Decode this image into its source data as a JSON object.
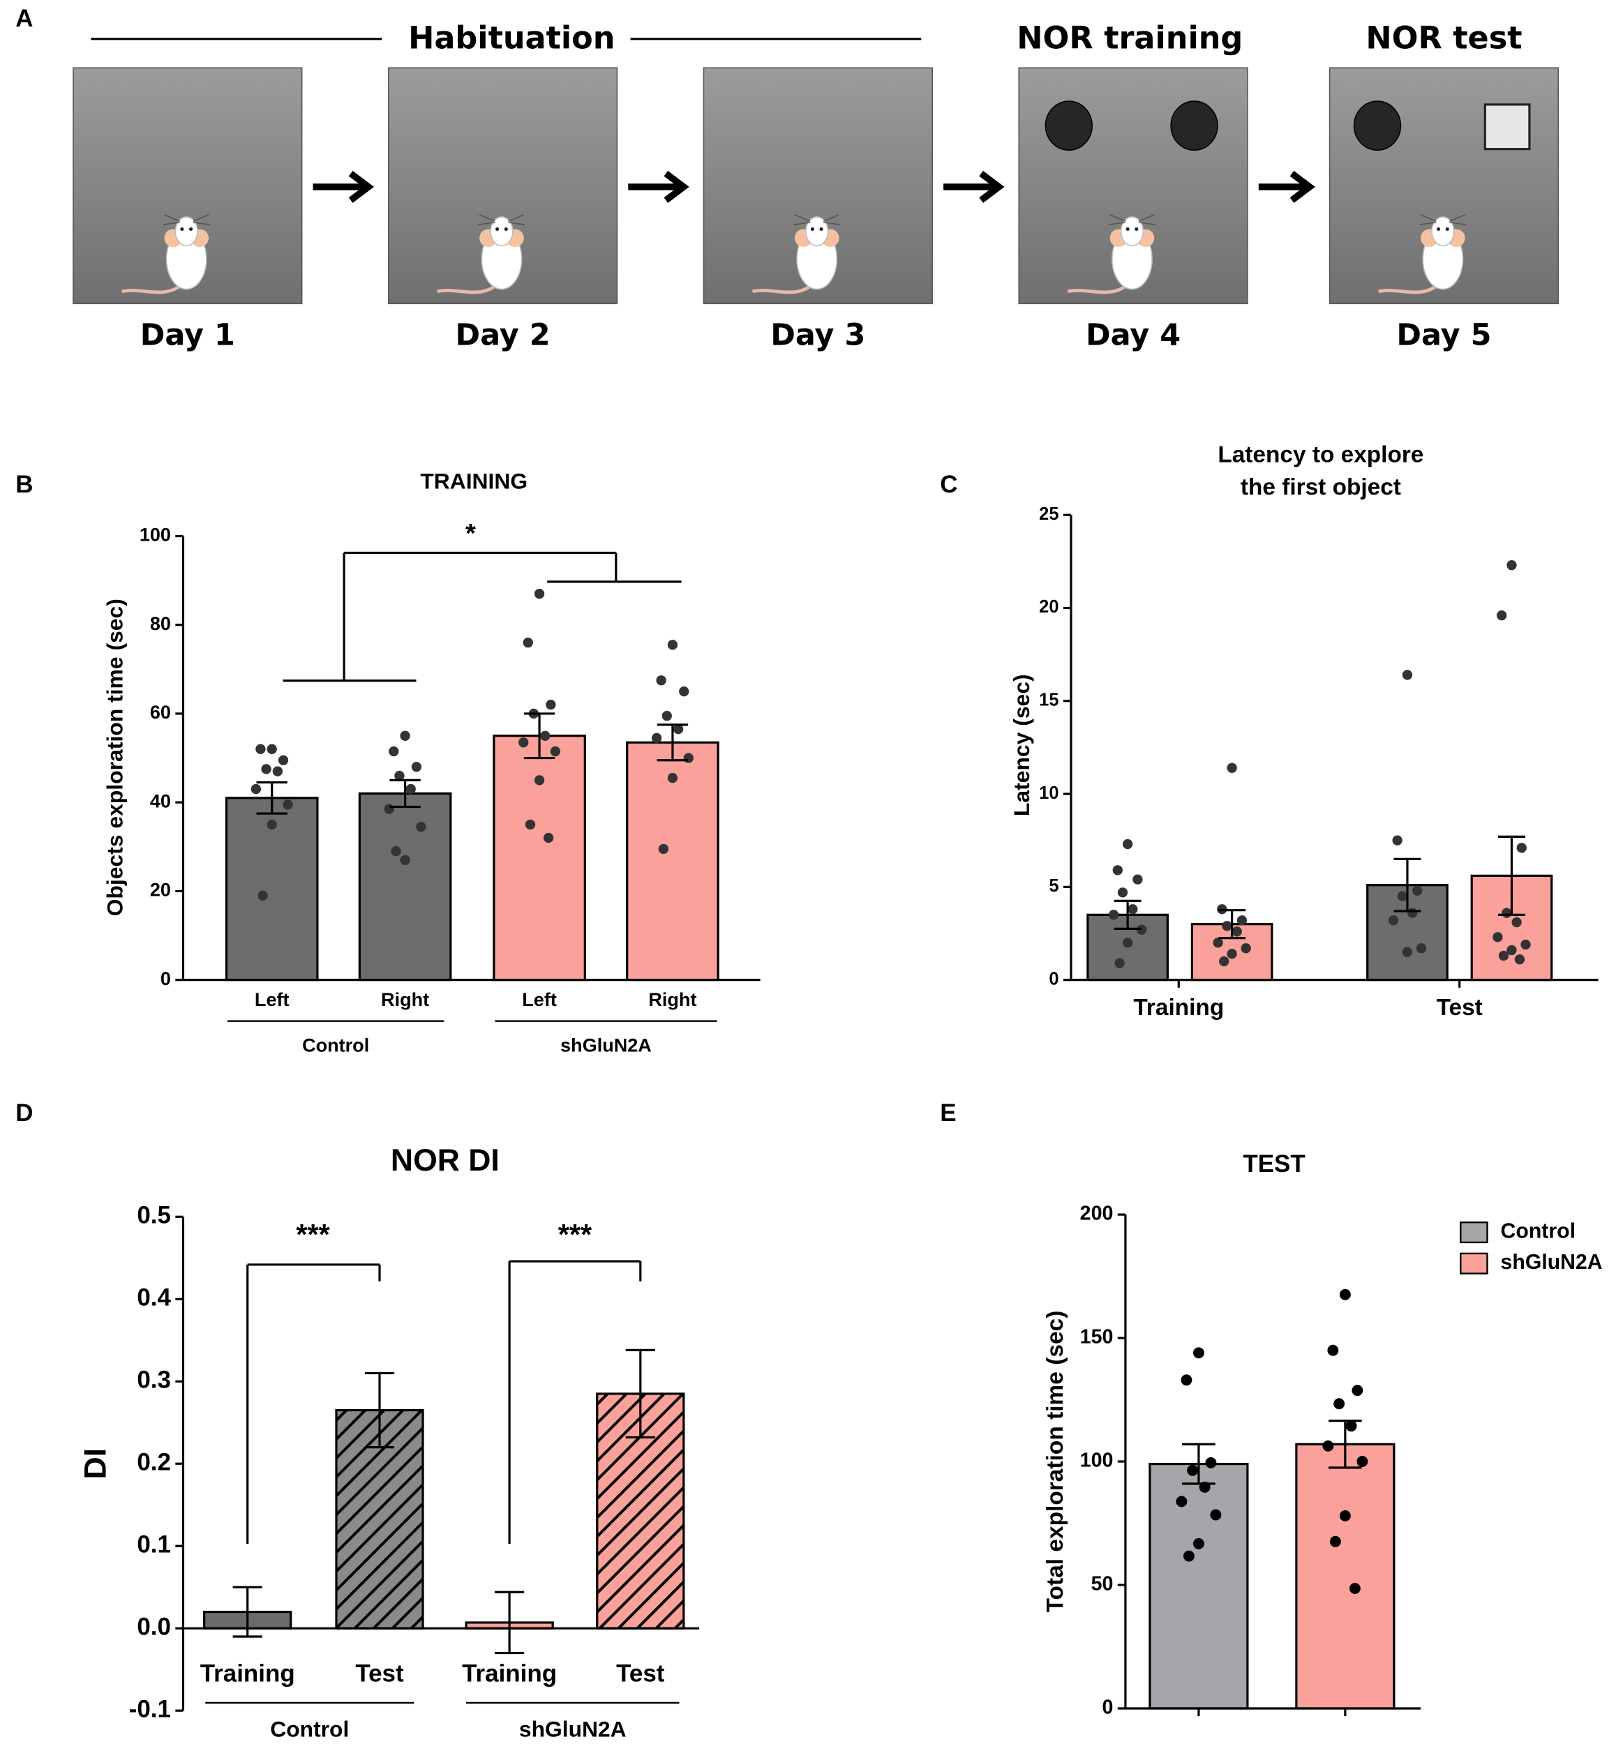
{
  "panel_a": {
    "panel_label": "A",
    "habituation": "Habituation",
    "training": "NOR training",
    "test": "NOR test",
    "days": [
      "Day 1",
      "Day 2",
      "Day 3",
      "Day 4",
      "Day 5"
    ]
  },
  "chart_data": [
    {
      "type": "bar",
      "panel_label": "B",
      "title": "TRAINING",
      "ylabel": "Objects exploration time (sec)",
      "categories": [
        "Left",
        "Right",
        "Left",
        "Right"
      ],
      "groups": [
        "Control",
        "shGluN2A"
      ],
      "values": [
        41,
        42,
        55,
        53.5
      ],
      "errors": [
        3.5,
        3,
        5,
        4
      ],
      "colors": [
        "#6d6d6d",
        "#6d6d6d",
        "#f9a19a",
        "#f9a19a"
      ],
      "points": [
        [
          52,
          52,
          49.5,
          47.5,
          47,
          43,
          39.5,
          35,
          19
        ],
        [
          55,
          51.5,
          48,
          46,
          43,
          38.5,
          34.5,
          27,
          29
        ],
        [
          87,
          76,
          62,
          60,
          55,
          53.5,
          51.5,
          45,
          35,
          32
        ],
        [
          75.5,
          67.5,
          65,
          59.5,
          56.5,
          54.5,
          50,
          45.5,
          29.5
        ]
      ],
      "annotations": [
        "*"
      ],
      "ylim": [
        0,
        100
      ],
      "yticks": [
        0,
        20,
        40,
        60,
        80,
        100
      ]
    },
    {
      "type": "bar",
      "panel_label": "C",
      "title": [
        "Latency to explore",
        "the first object"
      ],
      "ylabel": "Latency (sec)",
      "categories": [
        "Training",
        "Test"
      ],
      "series": [
        {
          "color": "#6d6d6d",
          "values": [
            3.5,
            5.1
          ],
          "errors": [
            0.75,
            1.4
          ],
          "points": [
            [
              7.3,
              5.9,
              5.4,
              4.7,
              3.8,
              3.5,
              2.7,
              2.0,
              0.9
            ],
            [
              16.4,
              7.5,
              4.8,
              4.5,
              3.6,
              3.2,
              1.7,
              1.5
            ]
          ]
        },
        {
          "color": "#f9a19a",
          "values": [
            3.0,
            5.6
          ],
          "errors": [
            0.75,
            2.1
          ],
          "points": [
            [
              11.4,
              3.8,
              3.2,
              2.9,
              2.6,
              2.0,
              1.7,
              1.4,
              1.0
            ],
            [
              22.3,
              19.6,
              7.1,
              3.6,
              3.1,
              2.3,
              1.9,
              1.6,
              1.3,
              1.1
            ]
          ]
        }
      ],
      "ylim": [
        0,
        25
      ],
      "yticks": [
        0,
        5,
        10,
        15,
        20,
        25
      ]
    },
    {
      "type": "bar",
      "panel_label": "D",
      "title": "NOR DI",
      "ylabel": "DI",
      "categories": [
        "Training",
        "Test",
        "Training",
        "Test"
      ],
      "groups": [
        "Control",
        "shGluN2A"
      ],
      "values": [
        0.02,
        0.265,
        0.007,
        0.285
      ],
      "errors": [
        0.03,
        0.045,
        0.037,
        0.053
      ],
      "colors": [
        "#6b6b6b",
        "#8a8a8a",
        "#f9a19a",
        "#f9a19a"
      ],
      "hatched": [
        false,
        true,
        false,
        true
      ],
      "annotations": [
        "***",
        "***"
      ],
      "ylim": [
        -0.1,
        0.5
      ],
      "yticks": [
        -0.1,
        {
          "value": 0,
          "label": "0.0"
        },
        0.1,
        0.2,
        0.3,
        0.4,
        0.5
      ]
    },
    {
      "type": "bar",
      "panel_label": "E",
      "title": "TEST",
      "ylabel": "Total exploration time (sec)",
      "series": [
        {
          "name": "Control",
          "color": "#a5a5aa",
          "values": [
            99
          ],
          "errors": [
            8
          ],
          "points": [
            [
              144,
              133,
              99.5,
              96.4,
              89.6,
              83.8,
              78.4,
              66.7,
              61.7
            ]
          ]
        },
        {
          "name": "shGluN2A",
          "color": "#f9a19a",
          "values": [
            107
          ],
          "errors": [
            9.5
          ],
          "points": [
            [
              167.6,
              145,
              128.8,
              123.4,
              114.4,
              106.3,
              100,
              78,
              67.6,
              48.6
            ]
          ]
        }
      ],
      "ylim": [
        0,
        200
      ],
      "yticks": [
        0,
        50,
        100,
        150,
        200
      ]
    }
  ]
}
